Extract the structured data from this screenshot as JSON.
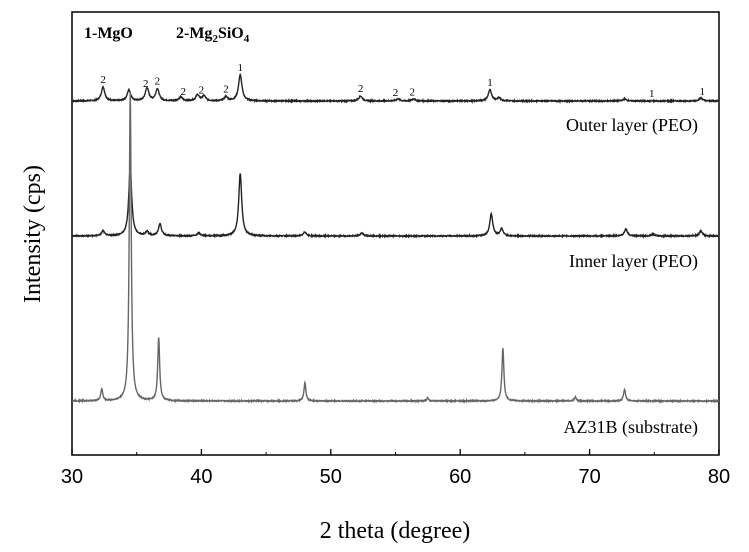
{
  "chart_data": {
    "type": "line",
    "xlabel": "2 theta (degree)",
    "ylabel": "Intensity (cps)",
    "xlim": [
      30,
      80
    ],
    "xticks": [
      "30",
      "40",
      "50",
      "60",
      "70",
      "80"
    ],
    "y_axis_ticks": "none",
    "grid": false,
    "phase_key": [
      {
        "id": "1",
        "label": "1-MgO",
        "formula": {
          "pre": "2-Mg",
          "sub1": "2",
          "mid": "SiO",
          "sub2": "4"
        }
      }
    ],
    "series": [
      {
        "name": "Outer layer (PEO)",
        "color": "#222222",
        "peaks": [
          {
            "x": 32.4,
            "h": 14
          },
          {
            "x": 34.4,
            "h": 11
          },
          {
            "x": 35.8,
            "h": 13
          },
          {
            "x": 36.6,
            "h": 12
          },
          {
            "x": 38.4,
            "h": 4
          },
          {
            "x": 39.7,
            "h": 6
          },
          {
            "x": 40.2,
            "h": 5
          },
          {
            "x": 41.9,
            "h": 4
          },
          {
            "x": 43.0,
            "h": 26
          },
          {
            "x": 52.3,
            "h": 5
          },
          {
            "x": 55.2,
            "h": 2
          },
          {
            "x": 56.4,
            "h": 2
          },
          {
            "x": 62.3,
            "h": 11
          },
          {
            "x": 63.0,
            "h": 3
          },
          {
            "x": 72.7,
            "h": 2
          },
          {
            "x": 78.6,
            "h": 3
          }
        ],
        "peak_labels": [
          {
            "x": 32.4,
            "text": "2"
          },
          {
            "x": 35.7,
            "text": "2"
          },
          {
            "x": 36.6,
            "text": "2"
          },
          {
            "x": 38.6,
            "text": "2"
          },
          {
            "x": 40.0,
            "text": "2"
          },
          {
            "x": 41.9,
            "text": "2"
          },
          {
            "x": 43.0,
            "text": "1"
          },
          {
            "x": 52.3,
            "text": "2"
          },
          {
            "x": 55.0,
            "text": "2"
          },
          {
            "x": 56.3,
            "text": "2"
          },
          {
            "x": 62.3,
            "text": "1"
          },
          {
            "x": 74.8,
            "text": "1"
          },
          {
            "x": 78.7,
            "text": "1"
          }
        ]
      },
      {
        "name": "Inner layer (PEO)",
        "color": "#222222",
        "peaks": [
          {
            "x": 32.4,
            "h": 5
          },
          {
            "x": 34.5,
            "h": 68
          },
          {
            "x": 35.8,
            "h": 4
          },
          {
            "x": 36.8,
            "h": 12
          },
          {
            "x": 39.8,
            "h": 3
          },
          {
            "x": 43.0,
            "h": 62
          },
          {
            "x": 48.0,
            "h": 4
          },
          {
            "x": 52.4,
            "h": 3
          },
          {
            "x": 62.4,
            "h": 22
          },
          {
            "x": 63.2,
            "h": 7
          },
          {
            "x": 72.8,
            "h": 7
          },
          {
            "x": 74.9,
            "h": 2
          },
          {
            "x": 78.6,
            "h": 5
          }
        ]
      },
      {
        "name": "AZ31B (substrate)",
        "color": "#666666",
        "peaks": [
          {
            "x": 32.3,
            "h": 12
          },
          {
            "x": 34.5,
            "h": 308
          },
          {
            "x": 36.7,
            "h": 63
          },
          {
            "x": 48.0,
            "h": 18
          },
          {
            "x": 57.5,
            "h": 3
          },
          {
            "x": 63.3,
            "h": 53
          },
          {
            "x": 68.9,
            "h": 4
          },
          {
            "x": 72.7,
            "h": 12
          }
        ]
      }
    ]
  }
}
